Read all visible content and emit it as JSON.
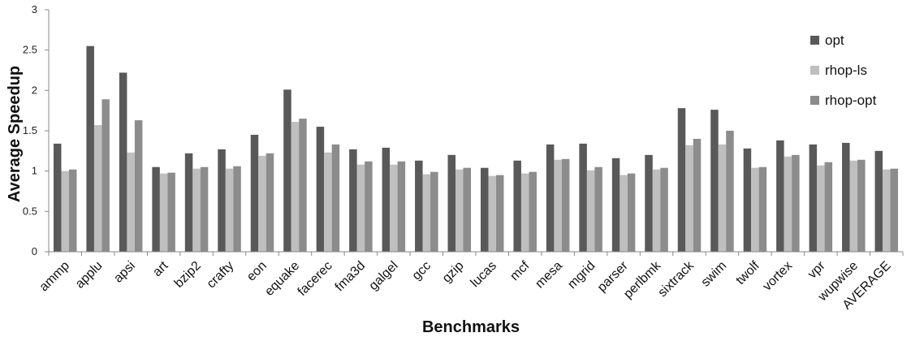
{
  "chart_data": {
    "type": "bar",
    "title": "",
    "xlabel": "Benchmarks",
    "ylabel": "Average Speedup",
    "ylim": [
      0,
      3
    ],
    "yticks": [
      0,
      0.5,
      1,
      1.5,
      2,
      2.5,
      3
    ],
    "ytick_labels": [
      "0",
      "0.5",
      "1",
      "1.5",
      "2",
      "2.5",
      "3"
    ],
    "grid": false,
    "legend_position": "top-right",
    "categories": [
      "ammp",
      "applu",
      "apsi",
      "art",
      "bzip2",
      "crafty",
      "eon",
      "equake",
      "facerec",
      "fma3d",
      "galgel",
      "gcc",
      "gzip",
      "lucas",
      "mcf",
      "mesa",
      "mgrid",
      "parser",
      "perlbmk",
      "sixtrack",
      "swim",
      "twolf",
      "vortex",
      "vpr",
      "wupwise",
      "AVERAGE"
    ],
    "series": [
      {
        "name": "opt",
        "color": "#595959",
        "values": [
          1.34,
          2.55,
          2.22,
          1.05,
          1.22,
          1.27,
          1.45,
          2.01,
          1.55,
          1.27,
          1.29,
          1.13,
          1.2,
          1.04,
          1.13,
          1.33,
          1.34,
          1.16,
          1.2,
          1.78,
          1.76,
          1.28,
          1.38,
          1.33,
          1.35,
          1.25
        ]
      },
      {
        "name": "rhop-ls",
        "color": "#bfbfbf",
        "values": [
          1.0,
          1.57,
          1.23,
          0.97,
          1.03,
          1.03,
          1.19,
          1.61,
          1.23,
          1.08,
          1.08,
          0.96,
          1.02,
          0.94,
          0.97,
          1.14,
          1.01,
          0.95,
          1.02,
          1.32,
          1.33,
          1.04,
          1.18,
          1.07,
          1.13,
          1.02
        ]
      },
      {
        "name": "rhop-opt",
        "color": "#8c8c8c",
        "values": [
          1.02,
          1.89,
          1.63,
          0.98,
          1.05,
          1.06,
          1.22,
          1.65,
          1.33,
          1.12,
          1.12,
          0.99,
          1.04,
          0.95,
          0.99,
          1.15,
          1.05,
          0.97,
          1.04,
          1.4,
          1.5,
          1.05,
          1.2,
          1.11,
          1.14,
          1.03
        ]
      }
    ]
  }
}
